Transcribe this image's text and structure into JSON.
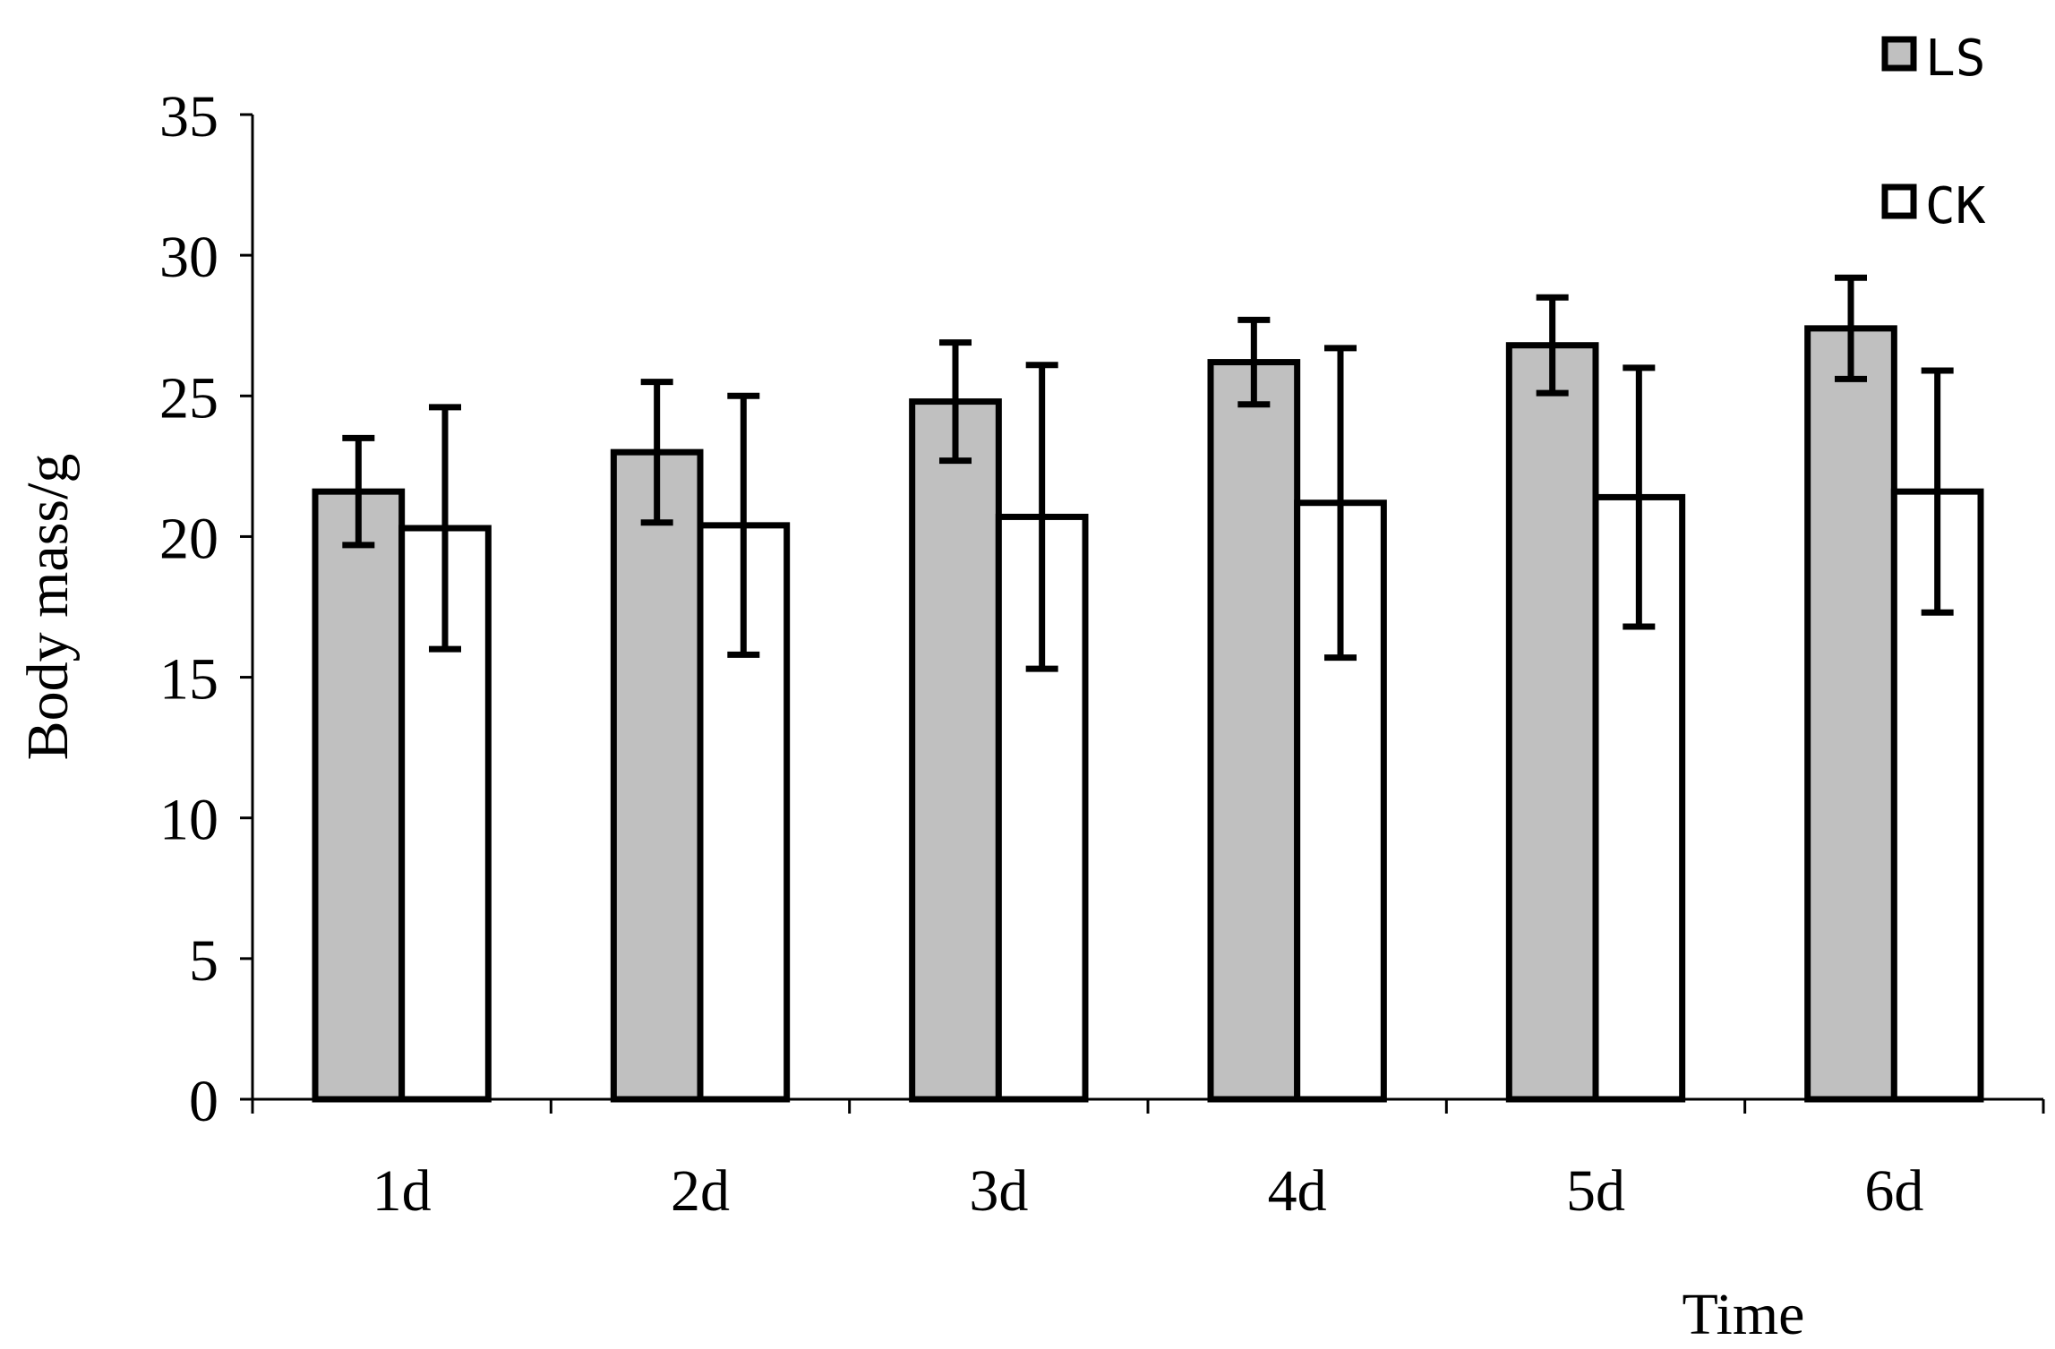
{
  "chart_data": {
    "type": "bar",
    "categories": [
      "1d",
      "2d",
      "3d",
      "4d",
      "5d",
      "6d"
    ],
    "series": [
      {
        "name": "LS",
        "color": "#c0c0c0",
        "values": [
          21.6,
          23.0,
          24.8,
          26.2,
          26.8,
          27.4
        ],
        "errors": [
          1.9,
          2.5,
          2.1,
          1.5,
          1.7,
          1.8
        ]
      },
      {
        "name": "CK",
        "color": "#ffffff",
        "values": [
          20.3,
          20.4,
          20.7,
          21.2,
          21.4,
          21.6
        ],
        "errors": [
          4.3,
          4.6,
          5.4,
          5.5,
          4.6,
          4.3
        ]
      }
    ],
    "xlabel": "Time",
    "ylabel": "Body mass/g",
    "ylim": [
      0,
      35
    ],
    "yticks": [
      0,
      5,
      10,
      15,
      20,
      25,
      30,
      35
    ],
    "grid": false,
    "legend_position": "top-right"
  }
}
